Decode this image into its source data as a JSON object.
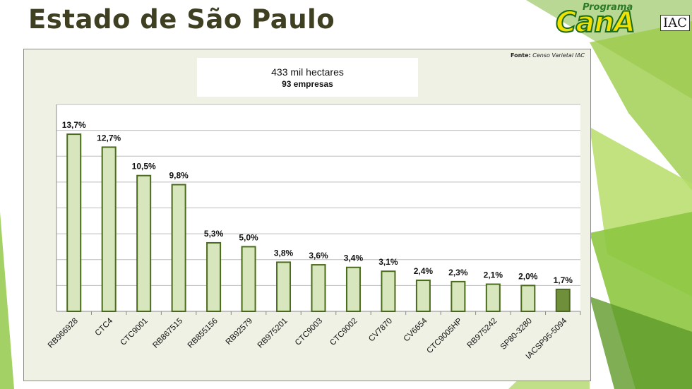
{
  "slide": {
    "title": "Estado de São Paulo"
  },
  "logo": {
    "programa": "Programa",
    "cana": "CanA",
    "iac": "IAC"
  },
  "source": {
    "label": "Fonte:",
    "text": "Censo Varietal IAC"
  },
  "info": {
    "hectares": "433 mil hectares",
    "empresas": "93 empresas"
  },
  "colors": {
    "bar_fill": "#d8e6bd",
    "bar_highlight": "#6f8f3a",
    "bar_stroke": "#4a6b1c",
    "panel_bg": "#eef1e4",
    "green_accent": "#8dc63f"
  },
  "chart_data": {
    "type": "bar",
    "categories": [
      "RB966928",
      "CTC4",
      "CTC9001",
      "RB867515",
      "RB855156",
      "RB92579",
      "RB975201",
      "CTC9003",
      "CTC9002",
      "CV7870",
      "CV6654",
      "CTC9005HP",
      "RB975242",
      "SP80-3280",
      "IACSP95-5094"
    ],
    "values": [
      13.7,
      12.7,
      10.5,
      9.8,
      5.3,
      5.0,
      3.8,
      3.6,
      3.4,
      3.1,
      2.4,
      2.3,
      2.1,
      2.0,
      1.7
    ],
    "data_labels": [
      "13,7%",
      "12,7%",
      "10,5%",
      "9,8%",
      "5,3%",
      "5,0%",
      "3,8%",
      "3,6%",
      "3,4%",
      "3,1%",
      "2,4%",
      "2,3%",
      "2,1%",
      "2,0%",
      "1,7%"
    ],
    "highlight_index": 14,
    "ylim": [
      0,
      16
    ],
    "ytick_step": 2,
    "grid": true,
    "legend": "none"
  }
}
